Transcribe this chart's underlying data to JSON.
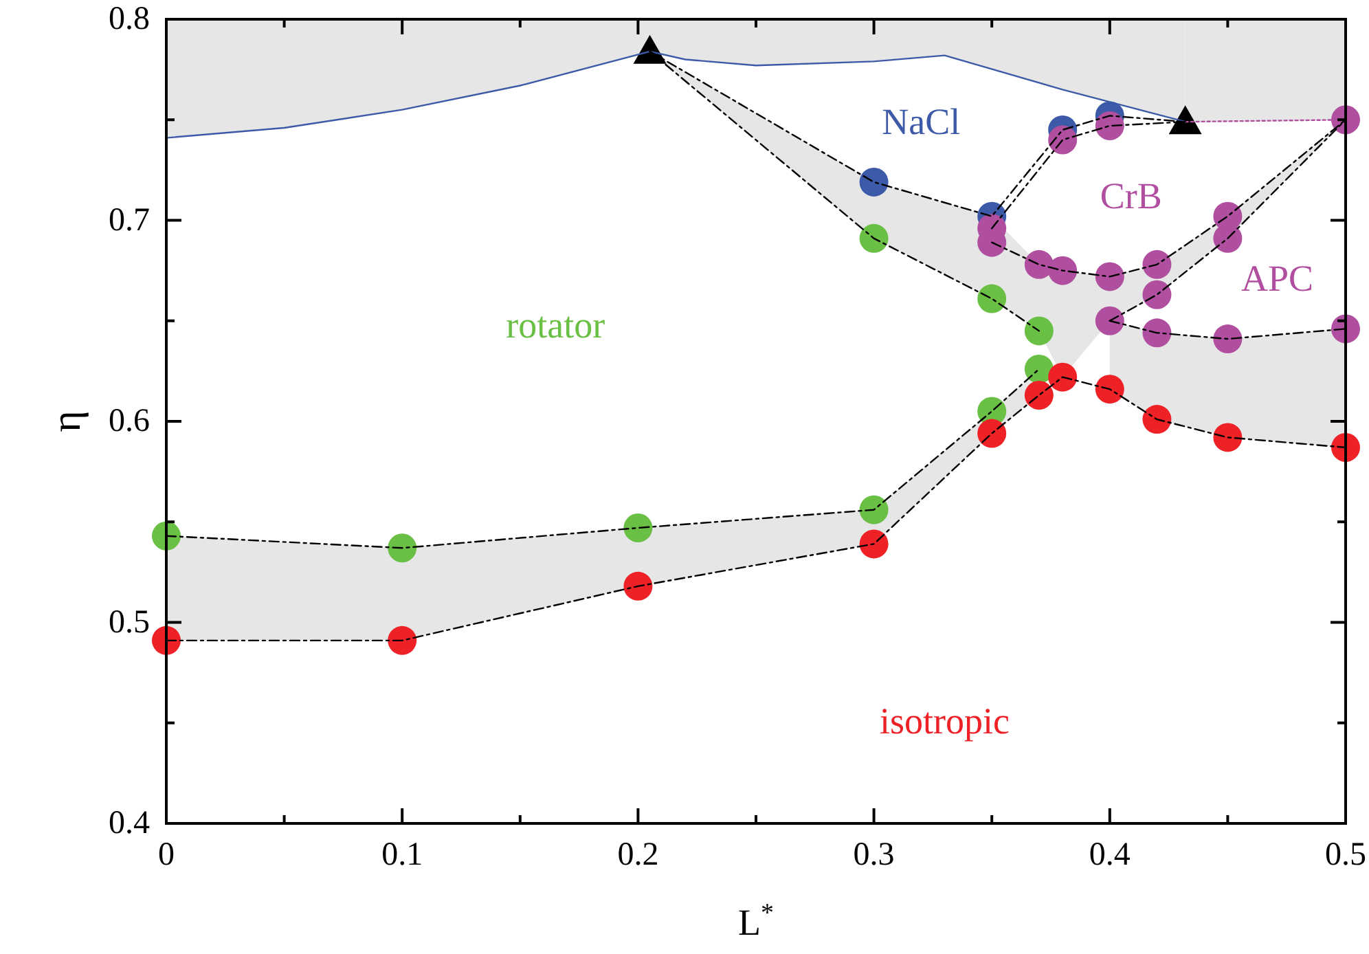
{
  "chart_data": {
    "type": "line",
    "xlabel": "L$^{*}$",
    "ylabel": "η",
    "xlim": [
      0,
      0.5
    ],
    "ylim": [
      0.4,
      0.8
    ],
    "xticks": [
      0,
      {
        "value": 0.05,
        "label": null
      },
      0.1,
      {
        "value": 0.15,
        "label": null
      },
      0.2,
      {
        "value": 0.25,
        "label": null
      },
      0.3,
      {
        "value": 0.35,
        "label": null
      },
      0.4,
      {
        "value": 0.45,
        "label": null
      },
      0.5
    ],
    "yticks": [
      0.4,
      {
        "value": 0.45,
        "label": null
      },
      0.5,
      {
        "value": 0.55,
        "label": null
      },
      0.6,
      {
        "value": 0.65,
        "label": null
      },
      0.7,
      {
        "value": 0.75,
        "label": null
      },
      0.8
    ],
    "grid": false,
    "series": [
      {
        "type": "line",
        "color": "#3d5aa8",
        "line_style": "solid",
        "marker": "none",
        "x": [
          0,
          0.05,
          0.1,
          0.15,
          0.205,
          0.22,
          0.25,
          0.3,
          0.33,
          0.38,
          0.432
        ],
        "values": [
          0.741,
          0.746,
          0.755,
          0.767,
          0.784,
          0.78,
          0.777,
          0.779,
          0.782,
          0.765,
          0.749
        ],
        "lower": [
          0.741,
          0.746,
          0.755,
          0.767,
          0.784,
          0.78,
          0.777,
          0.779,
          0.782,
          0.765,
          0.749
        ],
        "upper": [
          0.8,
          0.8,
          0.8,
          0.8,
          0.8,
          0.8,
          0.8,
          0.8,
          0.8,
          0.8,
          0.8
        ]
      },
      {
        "type": "line",
        "color": "#b04fa0",
        "line_style": "dotted",
        "marker": "none",
        "x": [
          0.432,
          0.5
        ],
        "values": [
          0.749,
          0.75
        ],
        "lower": [
          0.749,
          0.75
        ],
        "upper": [
          0.8,
          0.8
        ]
      },
      {
        "type": "line",
        "color": "#000000",
        "line_style": "dashed",
        "marker": "none",
        "x": [
          0,
          0.1,
          0.2,
          0.3,
          0.35,
          0.37
        ],
        "values": [
          0.543,
          0.537,
          0.547,
          0.556,
          0.605,
          0.626
        ],
        "upper": [
          0.543,
          0.537,
          0.547,
          0.556,
          0.605,
          0.626
        ],
        "lower": [
          0.491,
          0.491,
          0.518,
          0.539,
          0.594,
          0.613
        ]
      },
      {
        "type": "line",
        "color": "#000000",
        "line_style": "dashed",
        "marker": "none",
        "x": [
          0,
          0.1,
          0.2,
          0.3,
          0.35,
          0.37,
          0.38,
          0.4,
          0.42,
          0.45,
          0.5
        ],
        "values": [
          0.491,
          0.491,
          0.518,
          0.539,
          0.594,
          0.613,
          0.622,
          0.616,
          0.601,
          0.592,
          0.587
        ],
        "lower": [
          null,
          null,
          null,
          null,
          null,
          null,
          null,
          0.616,
          0.601,
          0.592,
          0.587
        ],
        "upper": [
          null,
          null,
          null,
          null,
          null,
          null,
          null,
          0.65,
          0.644,
          0.641,
          0.646
        ]
      },
      {
        "type": "line",
        "color": "#000000",
        "line_style": "dashed",
        "marker": "none",
        "x": [
          0.205,
          0.3,
          0.35,
          0.37
        ],
        "values": [
          0.784,
          0.691,
          0.661,
          0.645
        ],
        "lower": [
          0.784,
          0.691,
          0.661,
          0.645
        ],
        "upper": [
          0.784,
          0.719,
          0.702,
          0.678
        ]
      },
      {
        "type": "line",
        "color": "#000000",
        "line_style": "dashed",
        "marker": "none",
        "x": [
          0.205,
          0.3,
          0.35,
          0.38,
          0.4,
          0.432
        ],
        "values": [
          0.784,
          0.719,
          0.702,
          0.745,
          0.752,
          0.749
        ]
      },
      {
        "type": "line",
        "color": "#000000",
        "line_style": "dashed",
        "marker": "none",
        "x": [
          0.35,
          0.38,
          0.4,
          0.432
        ],
        "values": [
          0.696,
          0.74,
          0.747,
          0.749
        ]
      },
      {
        "type": "line",
        "color": "#000000",
        "line_style": "dashed",
        "marker": "none",
        "x": [
          0.35,
          0.37,
          0.38,
          0.4,
          0.42,
          0.45,
          0.5
        ],
        "values": [
          0.689,
          0.678,
          0.675,
          0.672,
          0.678,
          0.702,
          0.75
        ],
        "upper": [
          0.689,
          0.678,
          0.675,
          0.672,
          0.678,
          0.702,
          0.75
        ],
        "lower": [
          0.661,
          0.645,
          0.622,
          0.65,
          0.663,
          0.691,
          0.75
        ]
      },
      {
        "type": "line",
        "color": "#000000",
        "line_style": "dashed",
        "marker": "none",
        "x": [
          0.4,
          0.42,
          0.45,
          0.5
        ],
        "values": [
          0.65,
          0.663,
          0.691,
          0.75
        ]
      },
      {
        "type": "line",
        "color": "#000000",
        "line_style": "dashed",
        "marker": "none",
        "x": [
          0.4,
          0.42,
          0.45,
          0.5
        ],
        "values": [
          0.65,
          0.644,
          0.641,
          0.646
        ]
      },
      {
        "type": "scatter",
        "color": "#3d5aa8",
        "marker": "circle",
        "x": [
          0.3,
          0.35,
          0.38,
          0.4
        ],
        "values": [
          0.719,
          0.702,
          0.745,
          0.752
        ]
      },
      {
        "type": "scatter",
        "color": "#b04fa0",
        "marker": "circle",
        "x": [
          0.35,
          0.35,
          0.37,
          0.38,
          0.4,
          0.42,
          0.45,
          0.38,
          0.4
        ],
        "values": [
          0.696,
          0.689,
          0.678,
          0.675,
          0.672,
          0.678,
          0.702,
          0.74,
          0.747
        ]
      },
      {
        "type": "scatter",
        "color": "#6abf45",
        "marker": "circle",
        "x": [
          0,
          0.1,
          0.2,
          0.3,
          0.35,
          0.37,
          0.3,
          0.35,
          0.37
        ],
        "values": [
          0.543,
          0.537,
          0.547,
          0.556,
          0.605,
          0.626,
          0.691,
          0.661,
          0.645
        ]
      },
      {
        "type": "scatter",
        "color": "#ee2127",
        "marker": "circle",
        "x": [
          0,
          0.1,
          0.2,
          0.3,
          0.35,
          0.37,
          0.38,
          0.4,
          0.42,
          0.45,
          0.5
        ],
        "values": [
          0.491,
          0.491,
          0.518,
          0.539,
          0.594,
          0.613,
          0.622,
          0.616,
          0.601,
          0.592,
          0.587
        ]
      },
      {
        "type": "scatter",
        "color": "#b04fa0",
        "marker": "circle",
        "x": [
          0.4,
          0.42,
          0.45,
          0.5,
          0.42,
          0.45,
          0.5
        ],
        "values": [
          0.65,
          0.663,
          0.691,
          0.75,
          0.644,
          0.641,
          0.646
        ]
      },
      {
        "type": "scatter",
        "color": "#000000",
        "marker": "triangle",
        "x": [
          0.205,
          0.432
        ],
        "values": [
          0.784,
          0.749
        ]
      }
    ],
    "annotations": [
      "NaCl",
      "CrB",
      "APC",
      "rotator",
      "isotropic"
    ]
  }
}
